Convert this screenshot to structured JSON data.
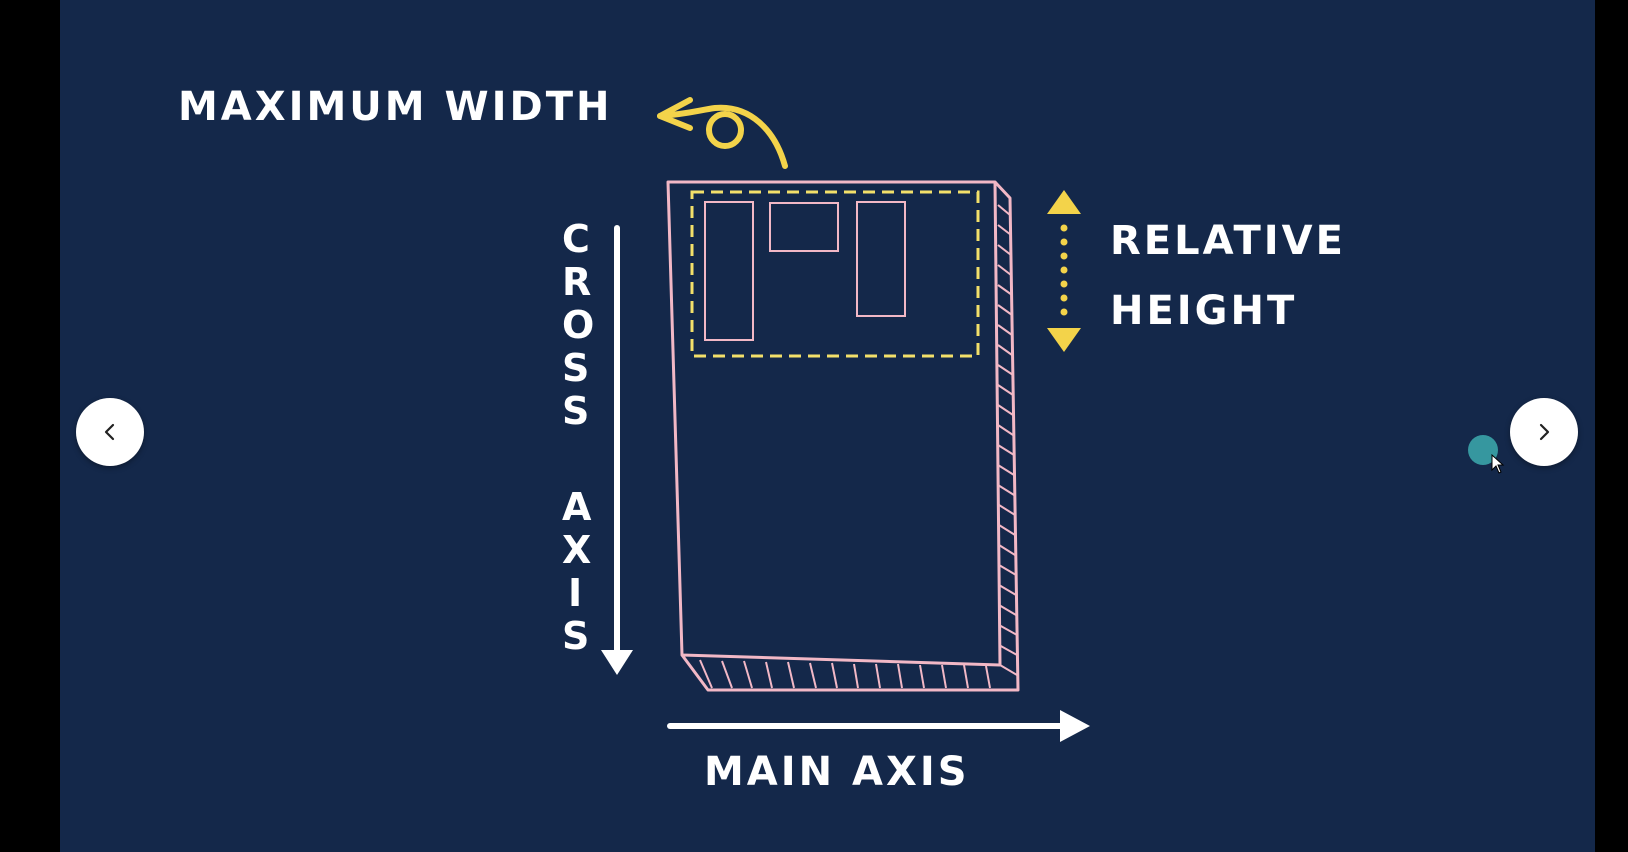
{
  "labels": {
    "maximum_width": "MAXIMUM WIDTH",
    "relative_height_line1": "RELATIVE",
    "relative_height_line2": "HEIGHT",
    "cross_axis": [
      "C",
      "R",
      "O",
      "S",
      "S",
      "",
      "A",
      "X",
      "I",
      "S"
    ],
    "main_axis": "MAIN AXIS"
  },
  "colors": {
    "background": "#14284a",
    "outer_frame": "#000000",
    "box_outline": "#f2b8c6",
    "dashed_highlight": "#f3e06a",
    "arrow_yellow": "#f3d34a",
    "text": "#ffffff",
    "cursor_dot": "#3aa3a8"
  },
  "icons": {
    "prev": "chevron-left-icon",
    "next": "chevron-right-icon",
    "cursor": "mouse-pointer-icon"
  }
}
